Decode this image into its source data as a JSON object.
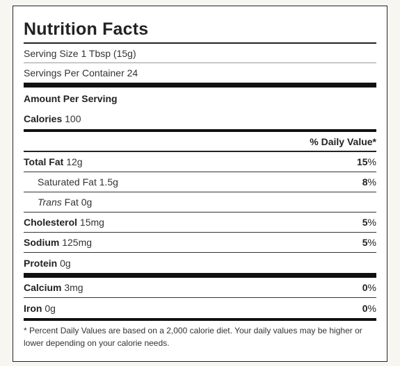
{
  "title": "Nutrition Facts",
  "serving_size": {
    "label": "Serving Size",
    "value": "1 Tbsp (15g)"
  },
  "servings_per_container": {
    "label": "Servings Per Container",
    "value": "24"
  },
  "amount_per_serving": "Amount Per Serving",
  "calories": {
    "label": "Calories",
    "value": "100"
  },
  "daily_value_header": "% Daily Value*",
  "nutrients": [
    {
      "name": "Total Fat",
      "amount": "12g",
      "pct": "15",
      "sym": "%"
    },
    {
      "name": "Saturated Fat",
      "amount": "1.5g",
      "pct": "8",
      "sym": "%"
    },
    {
      "name": "Trans",
      "name_suffix": "Fat",
      "amount": "0g"
    },
    {
      "name": "Cholesterol",
      "amount": "15mg",
      "pct": "5",
      "sym": "%"
    },
    {
      "name": "Sodium",
      "amount": "125mg",
      "pct": "5",
      "sym": "%"
    },
    {
      "name": "Protein",
      "amount": "0g"
    }
  ],
  "minerals": [
    {
      "name": "Calcium",
      "amount": "3mg",
      "pct": "0",
      "sym": "%"
    },
    {
      "name": "Iron",
      "amount": "0g",
      "pct": "0",
      "sym": "%"
    }
  ],
  "footnote": "* Percent Daily Values are based on a 2,000 calorie diet. Your daily values may be higher or lower depending on your calorie needs."
}
